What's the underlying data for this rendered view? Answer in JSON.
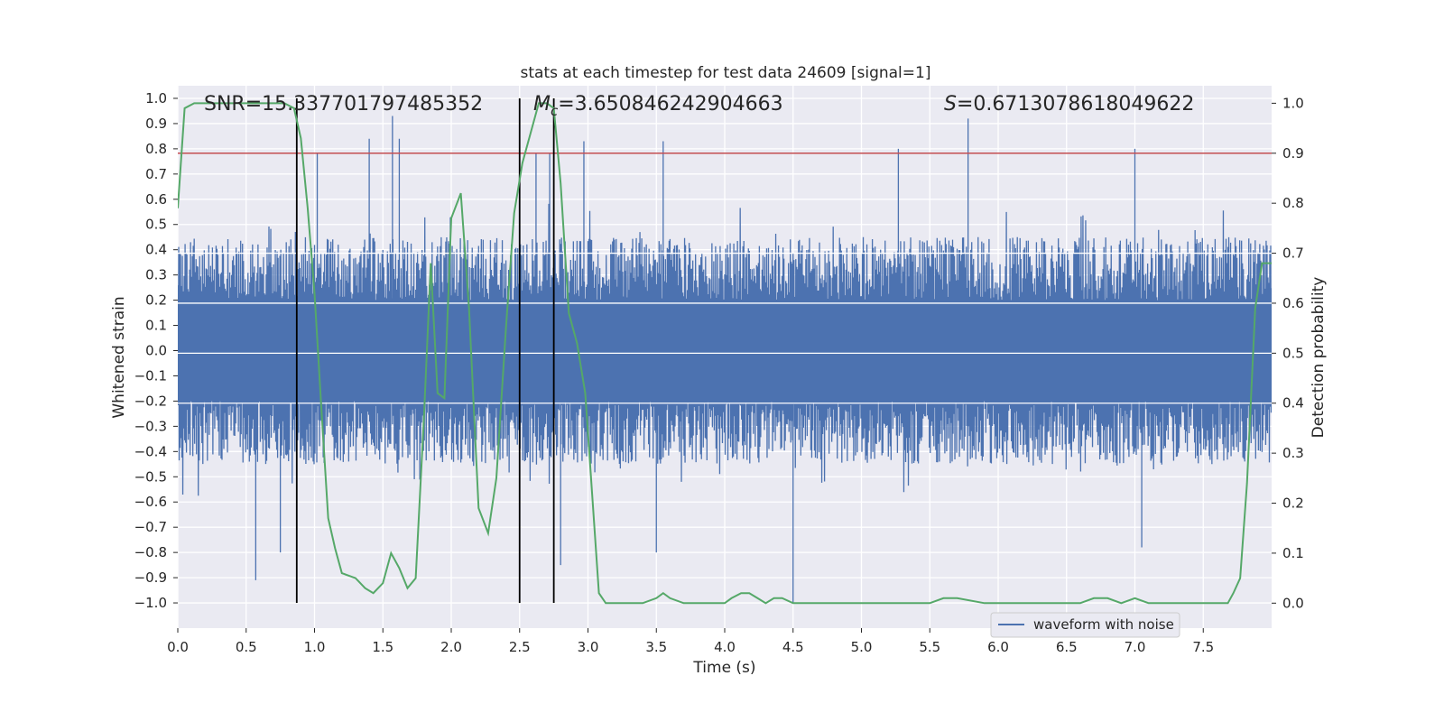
{
  "chart_data": {
    "type": "line",
    "title": "stats at each timestep for test data 24609 [signal=1]",
    "xlabel": "Time (s)",
    "ylabel_left": "Whitened strain",
    "ylabel_right": "Detection probability",
    "xlim": [
      0.0,
      8.0
    ],
    "ylim_left": [
      -1.1,
      1.05
    ],
    "ylim_right": [
      -0.05,
      1.035
    ],
    "xticks": [
      0.0,
      0.5,
      1.0,
      1.5,
      2.0,
      2.5,
      3.0,
      3.5,
      4.0,
      4.5,
      5.0,
      5.5,
      6.0,
      6.5,
      7.0,
      7.5
    ],
    "xtick_labels": [
      "0.0",
      "0.5",
      "1.0",
      "1.5",
      "2.0",
      "2.5",
      "3.0",
      "3.5",
      "4.0",
      "4.5",
      "5.0",
      "5.5",
      "6.0",
      "6.5",
      "7.0",
      "7.5"
    ],
    "yticks_left": [
      1.0,
      0.9,
      0.8,
      0.7,
      0.6,
      0.5,
      0.4,
      0.3,
      0.2,
      0.1,
      0.0,
      -0.1,
      -0.2,
      -0.3,
      -0.4,
      -0.5,
      -0.6,
      -0.7,
      -0.8,
      -0.9,
      -1.0
    ],
    "ytick_labels_left": [
      "1.0",
      "0.9",
      "0.8",
      "0.7",
      "0.6",
      "0.5",
      "0.4",
      "0.3",
      "0.2",
      "0.1",
      "0.0",
      "−0.1",
      "−0.2",
      "−0.3",
      "−0.4",
      "−0.5",
      "−0.6",
      "−0.7",
      "−0.8",
      "−0.9",
      "−1.0"
    ],
    "yticks_right": [
      1.0,
      0.9,
      0.8,
      0.7,
      0.6,
      0.5,
      0.4,
      0.3,
      0.2,
      0.1,
      0.0
    ],
    "ytick_labels_right": [
      "1.0",
      "0.9",
      "0.8",
      "0.7",
      "0.6",
      "0.5",
      "0.4",
      "0.3",
      "0.2",
      "0.1",
      "0.0"
    ],
    "grid": true,
    "legend": {
      "placement": "lower-right",
      "entries": [
        {
          "label": "waveform with noise",
          "color": "#4c72b0"
        }
      ]
    },
    "annotations": {
      "snr": "SNR=15.337701797485352",
      "mc_symbol": "M",
      "mc_subscript": "c",
      "mc_value": "=3.650846242904663",
      "s_symbol": "S",
      "s_value": "=0.6713078618049622"
    },
    "threshold": {
      "axis": "right",
      "value": 0.9,
      "color": "#c44e52"
    },
    "vertical_lines": [
      {
        "x": 0.87,
        "y_from": -1.0,
        "y_to": 1.0
      },
      {
        "x": 2.5,
        "y_from": -1.0,
        "y_to": 1.0
      },
      {
        "x": 2.75,
        "y_from": -1.0,
        "y_to": 1.0
      }
    ],
    "series": [
      {
        "name": "waveform with noise",
        "axis": "left",
        "color": "#4c72b0",
        "envelope": {
          "core_amplitude": 0.2,
          "typical_peak": 0.45,
          "max_peak": 0.93,
          "min_trough": -1.0
        },
        "spikes": [
          {
            "x": 0.57,
            "y": -0.91
          },
          {
            "x": 0.75,
            "y": -0.8
          },
          {
            "x": 0.87,
            "y": -0.84
          },
          {
            "x": 1.02,
            "y": 0.78
          },
          {
            "x": 1.4,
            "y": 0.84
          },
          {
            "x": 1.57,
            "y": 0.93
          },
          {
            "x": 1.62,
            "y": 0.84
          },
          {
            "x": 2.62,
            "y": 0.78
          },
          {
            "x": 2.72,
            "y": 0.78
          },
          {
            "x": 2.8,
            "y": -0.85
          },
          {
            "x": 2.97,
            "y": 0.83
          },
          {
            "x": 3.55,
            "y": 0.83
          },
          {
            "x": 4.5,
            "y": -1.0
          },
          {
            "x": 5.27,
            "y": 0.8
          },
          {
            "x": 5.78,
            "y": 0.92
          },
          {
            "x": 7.0,
            "y": 0.8
          },
          {
            "x": 7.05,
            "y": -0.78
          },
          {
            "x": 3.5,
            "y": -0.8
          }
        ]
      },
      {
        "name": "detection probability",
        "axis": "right",
        "color": "#55a868",
        "x": [
          0.0,
          0.05,
          0.12,
          0.2,
          0.3,
          0.4,
          0.5,
          0.6,
          0.7,
          0.78,
          0.85,
          0.9,
          0.95,
          1.0,
          1.05,
          1.1,
          1.15,
          1.2,
          1.3,
          1.37,
          1.43,
          1.5,
          1.56,
          1.62,
          1.68,
          1.74,
          1.8,
          1.85,
          1.9,
          1.95,
          2.0,
          2.07,
          2.13,
          2.2,
          2.27,
          2.33,
          2.4,
          2.46,
          2.52,
          2.58,
          2.64,
          2.7,
          2.75,
          2.8,
          2.86,
          2.92,
          2.98,
          3.03,
          3.08,
          3.13,
          3.2,
          3.3,
          3.4,
          3.5,
          3.55,
          3.6,
          3.7,
          3.8,
          3.9,
          4.0,
          4.05,
          4.12,
          4.18,
          4.24,
          4.3,
          4.36,
          4.42,
          4.5,
          4.6,
          4.7,
          4.8,
          4.9,
          5.0,
          5.1,
          5.3,
          5.5,
          5.6,
          5.7,
          5.9,
          6.0,
          6.2,
          6.4,
          6.6,
          6.7,
          6.8,
          6.9,
          7.0,
          7.1,
          7.3,
          7.5,
          7.6,
          7.68,
          7.72,
          7.77,
          7.82,
          7.88,
          7.93,
          8.0
        ],
        "y": [
          0.79,
          0.99,
          1.0,
          1.0,
          1.0,
          1.0,
          1.0,
          1.0,
          1.0,
          1.0,
          0.99,
          0.93,
          0.79,
          0.62,
          0.39,
          0.17,
          0.11,
          0.06,
          0.05,
          0.03,
          0.02,
          0.04,
          0.1,
          0.07,
          0.03,
          0.05,
          0.37,
          0.68,
          0.42,
          0.41,
          0.77,
          0.82,
          0.59,
          0.19,
          0.14,
          0.25,
          0.55,
          0.78,
          0.88,
          0.94,
          1.0,
          1.0,
          0.99,
          0.84,
          0.58,
          0.52,
          0.42,
          0.22,
          0.02,
          0.0,
          0.0,
          0.0,
          0.0,
          0.01,
          0.02,
          0.01,
          0.0,
          0.0,
          0.0,
          0.0,
          0.01,
          0.02,
          0.02,
          0.01,
          0.0,
          0.01,
          0.01,
          0.0,
          0.0,
          0.0,
          0.0,
          0.0,
          0.0,
          0.0,
          0.0,
          0.0,
          0.01,
          0.01,
          0.0,
          0.0,
          0.0,
          0.0,
          0.0,
          0.01,
          0.01,
          0.0,
          0.01,
          0.0,
          0.0,
          0.0,
          0.0,
          0.0,
          0.02,
          0.05,
          0.24,
          0.59,
          0.68,
          0.68
        ]
      }
    ]
  }
}
